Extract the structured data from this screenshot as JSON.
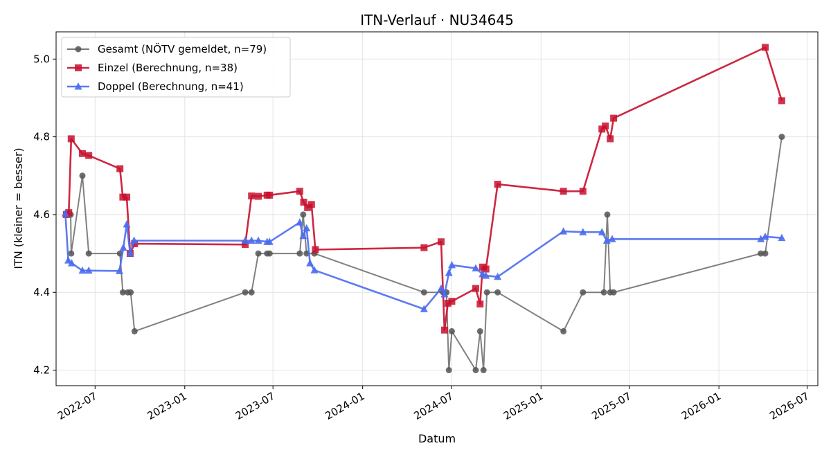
{
  "chart_data": {
    "type": "line",
    "title": "ITN-Verlauf · NU34645",
    "xlabel": "Datum",
    "ylabel": "ITN  (kleiner = besser)",
    "x_type": "date",
    "xlim": [
      "2022-04-12",
      "2026-07-23"
    ],
    "ylim": [
      4.16,
      5.07
    ],
    "x_ticks": [
      "2022-07",
      "2023-01",
      "2023-07",
      "2024-01",
      "2024-07",
      "2025-01",
      "2025-07",
      "2026-01",
      "2026-07"
    ],
    "y_ticks": [
      4.2,
      4.4,
      4.6,
      4.8,
      5.0
    ],
    "y_tick_labels": [
      "4.2",
      "4.4",
      "4.6",
      "4.8",
      "5.0"
    ],
    "grid": true,
    "legend_position": "top-left",
    "series": [
      {
        "name": "Gesamt (NÖTV gemeldet, n=79)",
        "color": "#555555",
        "marker": "circle",
        "points": [
          [
            "2022-05-03",
            4.6
          ],
          [
            "2022-05-12",
            4.6
          ],
          [
            "2022-05-13",
            4.5
          ],
          [
            "2022-06-05",
            4.7
          ],
          [
            "2022-06-18",
            4.5
          ],
          [
            "2022-08-21",
            4.5
          ],
          [
            "2022-08-27",
            4.4
          ],
          [
            "2022-09-06",
            4.4
          ],
          [
            "2022-09-12",
            4.4
          ],
          [
            "2022-09-20",
            4.3
          ],
          [
            "2023-05-05",
            4.4
          ],
          [
            "2023-05-18",
            4.4
          ],
          [
            "2023-06-01",
            4.5
          ],
          [
            "2023-06-19",
            4.5
          ],
          [
            "2023-06-24",
            4.5
          ],
          [
            "2023-08-25",
            4.5
          ],
          [
            "2023-09-01",
            4.6
          ],
          [
            "2023-09-08",
            4.5
          ],
          [
            "2023-09-24",
            4.5
          ],
          [
            "2024-05-06",
            4.4
          ],
          [
            "2024-06-14",
            4.4
          ],
          [
            "2024-06-21",
            4.4
          ],
          [
            "2024-06-26",
            4.2
          ],
          [
            "2024-07-02",
            4.3
          ],
          [
            "2024-08-20",
            4.2
          ],
          [
            "2024-08-29",
            4.3
          ],
          [
            "2024-09-05",
            4.2
          ],
          [
            "2024-09-12",
            4.4
          ],
          [
            "2024-10-04",
            4.4
          ],
          [
            "2025-02-16",
            4.3
          ],
          [
            "2025-03-28",
            4.4
          ],
          [
            "2025-05-10",
            4.4
          ],
          [
            "2025-05-17",
            4.6
          ],
          [
            "2025-05-23",
            4.4
          ],
          [
            "2025-05-30",
            4.4
          ],
          [
            "2026-03-28",
            4.5
          ],
          [
            "2026-04-06",
            4.5
          ],
          [
            "2026-05-10",
            4.8
          ]
        ]
      },
      {
        "name": "Einzel (Berechnung, n=38)",
        "color": "#c8102e",
        "marker": "square",
        "points": [
          [
            "2022-05-03",
            4.6
          ],
          [
            "2022-05-08",
            4.605
          ],
          [
            "2022-05-13",
            4.795
          ],
          [
            "2022-06-05",
            4.757
          ],
          [
            "2022-06-18",
            4.752
          ],
          [
            "2022-08-21",
            4.718
          ],
          [
            "2022-08-27",
            4.645
          ],
          [
            "2022-09-04",
            4.645
          ],
          [
            "2022-09-11",
            4.5
          ],
          [
            "2022-09-20",
            4.525
          ],
          [
            "2023-05-05",
            4.523
          ],
          [
            "2023-05-18",
            4.648
          ],
          [
            "2023-06-01",
            4.647
          ],
          [
            "2023-06-19",
            4.65
          ],
          [
            "2023-06-24",
            4.65
          ],
          [
            "2023-08-25",
            4.66
          ],
          [
            "2023-09-02",
            4.632
          ],
          [
            "2023-09-10",
            4.618
          ],
          [
            "2023-09-18",
            4.626
          ],
          [
            "2023-09-26",
            4.51
          ],
          [
            "2024-05-06",
            4.515
          ],
          [
            "2024-06-10",
            4.53
          ],
          [
            "2024-06-17",
            4.303
          ],
          [
            "2024-06-24",
            4.372
          ],
          [
            "2024-07-02",
            4.377
          ],
          [
            "2024-08-20",
            4.41
          ],
          [
            "2024-08-29",
            4.37
          ],
          [
            "2024-09-03",
            4.465
          ],
          [
            "2024-09-10",
            4.46
          ],
          [
            "2024-10-04",
            4.678
          ],
          [
            "2025-02-16",
            4.66
          ],
          [
            "2025-03-28",
            4.66
          ],
          [
            "2025-05-06",
            4.82
          ],
          [
            "2025-05-13",
            4.828
          ],
          [
            "2025-05-23",
            4.795
          ],
          [
            "2025-05-30",
            4.848
          ],
          [
            "2026-04-06",
            5.03
          ],
          [
            "2026-05-10",
            4.893
          ]
        ]
      },
      {
        "name": "Doppel (Berechnung, n=41)",
        "color": "#4a6cf0",
        "marker": "triangle",
        "points": [
          [
            "2022-05-01",
            4.603
          ],
          [
            "2022-05-07",
            4.482
          ],
          [
            "2022-05-14",
            4.475
          ],
          [
            "2022-06-05",
            4.456
          ],
          [
            "2022-06-18",
            4.456
          ],
          [
            "2022-08-20",
            4.455
          ],
          [
            "2022-08-28",
            4.515
          ],
          [
            "2022-09-04",
            4.575
          ],
          [
            "2022-09-11",
            4.5
          ],
          [
            "2022-09-19",
            4.533
          ],
          [
            "2023-05-05",
            4.533
          ],
          [
            "2023-05-18",
            4.533
          ],
          [
            "2023-06-01",
            4.533
          ],
          [
            "2023-06-19",
            4.53
          ],
          [
            "2023-06-24",
            4.53
          ],
          [
            "2023-08-25",
            4.58
          ],
          [
            "2023-09-01",
            4.545
          ],
          [
            "2023-09-08",
            4.565
          ],
          [
            "2023-09-15",
            4.475
          ],
          [
            "2023-09-24",
            4.457
          ],
          [
            "2024-05-06",
            4.357
          ],
          [
            "2024-06-10",
            4.41
          ],
          [
            "2024-06-17",
            4.395
          ],
          [
            "2024-06-26",
            4.45
          ],
          [
            "2024-07-02",
            4.47
          ],
          [
            "2024-08-20",
            4.462
          ],
          [
            "2024-09-03",
            4.447
          ],
          [
            "2024-09-10",
            4.443
          ],
          [
            "2024-10-04",
            4.44
          ],
          [
            "2025-02-16",
            4.557
          ],
          [
            "2025-03-28",
            4.555
          ],
          [
            "2025-05-06",
            4.555
          ],
          [
            "2025-05-16",
            4.533
          ],
          [
            "2025-05-27",
            4.537
          ],
          [
            "2026-03-28",
            4.537
          ],
          [
            "2026-04-06",
            4.543
          ],
          [
            "2026-05-10",
            4.54
          ]
        ]
      }
    ]
  }
}
